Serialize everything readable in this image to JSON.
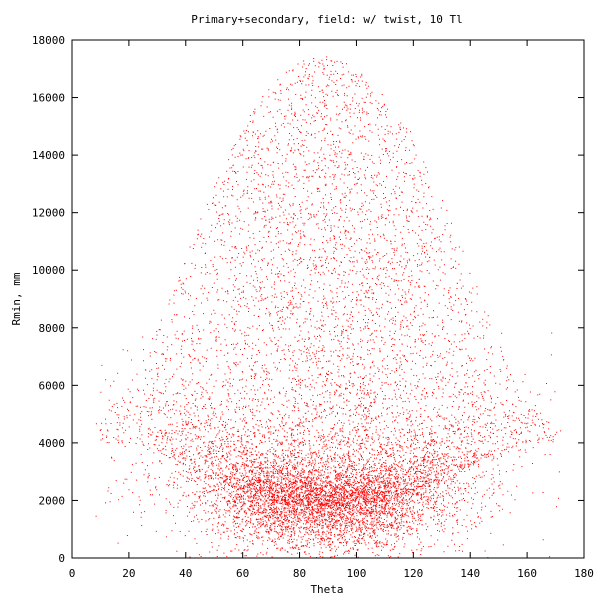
{
  "chart_data": {
    "type": "scatter",
    "title": "Primary+secondary, field: w/ twist, 10 Tl",
    "xlabel": "Theta",
    "ylabel": "Rmin, mm",
    "xlim": [
      0,
      180
    ],
    "ylim": [
      0,
      18000
    ],
    "x_ticks": [
      "0",
      "20",
      "40",
      "60",
      "80",
      "100",
      "120",
      "140",
      "160",
      "180"
    ],
    "y_ticks": [
      "0",
      "2000",
      "4000",
      "6000",
      "8000",
      "10000",
      "12000",
      "14000",
      "16000",
      "18000"
    ],
    "grid": false,
    "legend": "none",
    "marker_color": "#ff0000",
    "distribution_points": [
      {
        "x": 10,
        "y": 4000
      },
      {
        "x": 20,
        "y": 4000
      },
      {
        "x": 30,
        "y": 3700
      },
      {
        "x": 40,
        "y": 3200
      },
      {
        "x": 50,
        "y": 2700
      },
      {
        "x": 60,
        "y": 2300
      },
      {
        "x": 70,
        "y": 2000
      },
      {
        "x": 80,
        "y": 1900
      },
      {
        "x": 90,
        "y": 1800
      },
      {
        "x": 100,
        "y": 1900
      },
      {
        "x": 110,
        "y": 2000
      },
      {
        "x": 120,
        "y": 2300
      },
      {
        "x": 130,
        "y": 2700
      },
      {
        "x": 140,
        "y": 3200
      },
      {
        "x": 150,
        "y": 3700
      },
      {
        "x": 160,
        "y": 4000
      },
      {
        "x": 170,
        "y": 4000
      }
    ],
    "upper_envelope": [
      {
        "x": 10,
        "y": 4800
      },
      {
        "x": 20,
        "y": 6000
      },
      {
        "x": 30,
        "y": 8000
      },
      {
        "x": 40,
        "y": 10500
      },
      {
        "x": 50,
        "y": 13000
      },
      {
        "x": 60,
        "y": 15000
      },
      {
        "x": 70,
        "y": 16500
      },
      {
        "x": 80,
        "y": 17300
      },
      {
        "x": 90,
        "y": 17500
      },
      {
        "x": 100,
        "y": 17000
      },
      {
        "x": 110,
        "y": 16000
      },
      {
        "x": 120,
        "y": 14700
      },
      {
        "x": 130,
        "y": 12500
      },
      {
        "x": 140,
        "y": 10000
      },
      {
        "x": 150,
        "y": 7500
      },
      {
        "x": 160,
        "y": 5500
      },
      {
        "x": 170,
        "y": 4500
      }
    ]
  }
}
